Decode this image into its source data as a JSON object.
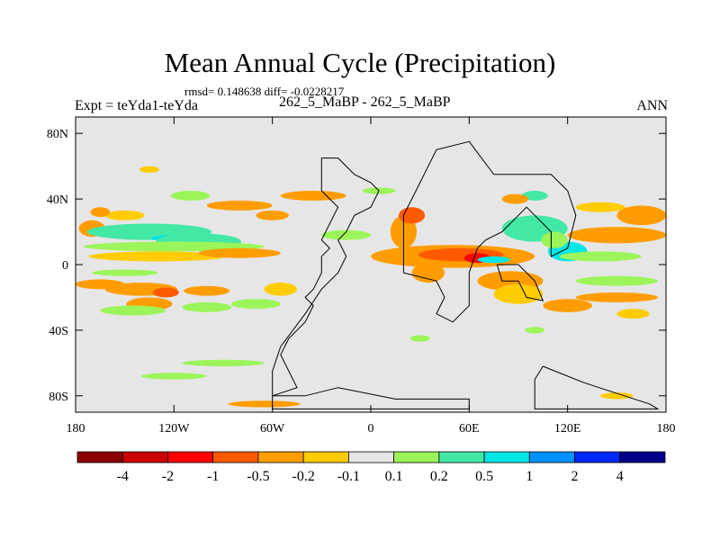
{
  "chart_data": {
    "type": "heatmap",
    "title": "Mean Annual Cycle (Precipitation)",
    "stats_line": "rmsd= 0.148638 diff= -0.0228217",
    "left_label": "Expt = teYda1-teYda",
    "center_label": "262_5_MaBP - 262_5_MaBP",
    "right_label": "ANN",
    "x_ticks": [
      "180",
      "120W",
      "60W",
      "0",
      "60E",
      "120E",
      "180"
    ],
    "y_ticks": [
      "80N",
      "40N",
      "0",
      "40S",
      "80S"
    ],
    "x_range": [
      -180,
      180
    ],
    "y_range": [
      -90,
      90
    ],
    "colorbar": {
      "labels": [
        "-4",
        "-2",
        "-1",
        "-0.5",
        "-0.2",
        "-0.1",
        "0.1",
        "0.2",
        "0.5",
        "1",
        "2",
        "4"
      ],
      "colors": [
        "#8b0000",
        "#cc0000",
        "#ff0000",
        "#ff5a00",
        "#ff9d00",
        "#ffcc00",
        "#e6e6e6",
        "#9bf55a",
        "#44e8a5",
        "#00e5e5",
        "#0090ff",
        "#0028ff",
        "#00008b"
      ]
    },
    "background_color": "#e6e6e6",
    "blobs": [
      {
        "lon": -170,
        "lat": 22,
        "rlon": 8,
        "rlat": 5,
        "c": 4
      },
      {
        "lon": -150,
        "lat": 30,
        "rlon": 12,
        "rlat": 3,
        "c": 5
      },
      {
        "lon": -165,
        "lat": 32,
        "rlon": 6,
        "rlat": 3,
        "c": 4
      },
      {
        "lon": -135,
        "lat": 20,
        "rlon": 38,
        "rlat": 5,
        "c": 8
      },
      {
        "lon": -120,
        "lat": 16,
        "rlon": 14,
        "rlat": 2,
        "c": 9
      },
      {
        "lon": -105,
        "lat": 14,
        "rlon": 26,
        "rlat": 5,
        "c": 8
      },
      {
        "lon": -120,
        "lat": 11,
        "rlon": 55,
        "rlat": 3,
        "c": 7
      },
      {
        "lon": -130,
        "lat": 5,
        "rlon": 42,
        "rlat": 3,
        "c": 5
      },
      {
        "lon": -80,
        "lat": 7,
        "rlon": 25,
        "rlat": 3,
        "c": 4
      },
      {
        "lon": -110,
        "lat": 42,
        "rlon": 12,
        "rlat": 3,
        "c": 7
      },
      {
        "lon": -80,
        "lat": 36,
        "rlon": 20,
        "rlat": 3,
        "c": 4
      },
      {
        "lon": -60,
        "lat": 30,
        "rlon": 10,
        "rlat": 3,
        "c": 4
      },
      {
        "lon": -135,
        "lat": 58,
        "rlon": 6,
        "rlat": 2,
        "c": 5
      },
      {
        "lon": -165,
        "lat": -12,
        "rlon": 15,
        "rlat": 3,
        "c": 4
      },
      {
        "lon": -140,
        "lat": -15,
        "rlon": 22,
        "rlat": 4,
        "c": 4
      },
      {
        "lon": -100,
        "lat": -16,
        "rlon": 14,
        "rlat": 3,
        "c": 4
      },
      {
        "lon": -135,
        "lat": -24,
        "rlon": 14,
        "rlat": 4,
        "c": 4
      },
      {
        "lon": -125,
        "lat": -17,
        "rlon": 8,
        "rlat": 3,
        "c": 3
      },
      {
        "lon": -145,
        "lat": -28,
        "rlon": 20,
        "rlat": 3,
        "c": 7
      },
      {
        "lon": -100,
        "lat": -26,
        "rlon": 15,
        "rlat": 3,
        "c": 7
      },
      {
        "lon": -70,
        "lat": -24,
        "rlon": 15,
        "rlat": 3,
        "c": 7
      },
      {
        "lon": -55,
        "lat": -15,
        "rlon": 10,
        "rlat": 4,
        "c": 5
      },
      {
        "lon": -150,
        "lat": -5,
        "rlon": 20,
        "rlat": 2,
        "c": 7
      },
      {
        "lon": -35,
        "lat": 42,
        "rlon": 20,
        "rlat": 3,
        "c": 4
      },
      {
        "lon": -15,
        "lat": 18,
        "rlon": 15,
        "rlat": 3,
        "c": 7
      },
      {
        "lon": 20,
        "lat": 20,
        "rlon": 8,
        "rlat": 10,
        "c": 4
      },
      {
        "lon": 25,
        "lat": 30,
        "rlon": 8,
        "rlat": 5,
        "c": 3
      },
      {
        "lon": 50,
        "lat": 5,
        "rlon": 50,
        "rlat": 7,
        "c": 4
      },
      {
        "lon": 55,
        "lat": 6,
        "rlon": 26,
        "rlat": 4,
        "c": 3
      },
      {
        "lon": 65,
        "lat": 4,
        "rlon": 8,
        "rlat": 3,
        "c": 2
      },
      {
        "lon": 75,
        "lat": 3,
        "rlon": 10,
        "rlat": 2,
        "c": 9
      },
      {
        "lon": 35,
        "lat": -5,
        "rlon": 10,
        "rlat": 6,
        "c": 4
      },
      {
        "lon": 85,
        "lat": -10,
        "rlon": 20,
        "rlat": 6,
        "c": 4
      },
      {
        "lon": 90,
        "lat": -18,
        "rlon": 15,
        "rlat": 6,
        "c": 5
      },
      {
        "lon": 100,
        "lat": 22,
        "rlon": 20,
        "rlat": 8,
        "c": 8
      },
      {
        "lon": 120,
        "lat": 8,
        "rlon": 12,
        "rlat": 6,
        "c": 9
      },
      {
        "lon": 112,
        "lat": 15,
        "rlon": 8,
        "rlat": 5,
        "c": 7
      },
      {
        "lon": 150,
        "lat": 18,
        "rlon": 30,
        "rlat": 5,
        "c": 4
      },
      {
        "lon": 165,
        "lat": 30,
        "rlon": 15,
        "rlat": 6,
        "c": 4
      },
      {
        "lon": 140,
        "lat": 35,
        "rlon": 15,
        "rlat": 3,
        "c": 5
      },
      {
        "lon": 140,
        "lat": 5,
        "rlon": 25,
        "rlat": 3,
        "c": 7
      },
      {
        "lon": 150,
        "lat": -10,
        "rlon": 25,
        "rlat": 3,
        "c": 7
      },
      {
        "lon": 150,
        "lat": -20,
        "rlon": 25,
        "rlat": 3,
        "c": 4
      },
      {
        "lon": 120,
        "lat": -25,
        "rlon": 15,
        "rlat": 4,
        "c": 4
      },
      {
        "lon": 160,
        "lat": -30,
        "rlon": 10,
        "rlat": 3,
        "c": 5
      },
      {
        "lon": 100,
        "lat": -40,
        "rlon": 6,
        "rlat": 2,
        "c": 7
      },
      {
        "lon": 30,
        "lat": -45,
        "rlon": 6,
        "rlat": 2,
        "c": 7
      },
      {
        "lon": -90,
        "lat": -60,
        "rlon": 25,
        "rlat": 2,
        "c": 7
      },
      {
        "lon": -120,
        "lat": -68,
        "rlon": 20,
        "rlat": 2,
        "c": 7
      },
      {
        "lon": -65,
        "lat": -85,
        "rlon": 22,
        "rlat": 2,
        "c": 4
      },
      {
        "lon": 150,
        "lat": -80,
        "rlon": 10,
        "rlat": 2,
        "c": 5
      },
      {
        "lon": 5,
        "lat": 45,
        "rlon": 10,
        "rlat": 2,
        "c": 7
      },
      {
        "lon": 100,
        "lat": 42,
        "rlon": 8,
        "rlat": 3,
        "c": 8
      },
      {
        "lon": 88,
        "lat": 40,
        "rlon": 8,
        "rlat": 3,
        "c": 4
      }
    ],
    "continents": [
      [
        [
          -30,
          65
        ],
        [
          -30,
          45
        ],
        [
          -25,
          40
        ],
        [
          -20,
          35
        ],
        [
          -25,
          25
        ],
        [
          -30,
          15
        ],
        [
          -25,
          10
        ],
        [
          -30,
          5
        ],
        [
          -30,
          -5
        ],
        [
          -35,
          -15
        ],
        [
          -40,
          -20
        ],
        [
          -35,
          -25
        ],
        [
          -40,
          -35
        ],
        [
          -50,
          -45
        ],
        [
          -55,
          -55
        ],
        [
          -50,
          -65
        ],
        [
          -45,
          -75
        ],
        [
          -60,
          -80
        ],
        [
          -60,
          -65
        ],
        [
          -55,
          -50
        ],
        [
          -40,
          -30
        ],
        [
          -30,
          -15
        ],
        [
          -20,
          -5
        ],
        [
          -15,
          5
        ],
        [
          -20,
          15
        ],
        [
          -15,
          20
        ],
        [
          -10,
          30
        ],
        [
          0,
          35
        ],
        [
          5,
          45
        ],
        [
          0,
          50
        ],
        [
          -10,
          55
        ],
        [
          -20,
          65
        ],
        [
          -30,
          65
        ]
      ],
      [
        [
          20,
          20
        ],
        [
          20,
          -5
        ],
        [
          40,
          -10
        ],
        [
          45,
          -20
        ],
        [
          40,
          -30
        ],
        [
          50,
          -35
        ],
        [
          60,
          -25
        ],
        [
          60,
          -5
        ],
        [
          65,
          10
        ],
        [
          70,
          15
        ],
        [
          80,
          20
        ],
        [
          95,
          35
        ],
        [
          110,
          20
        ],
        [
          110,
          5
        ],
        [
          120,
          10
        ],
        [
          125,
          30
        ],
        [
          120,
          45
        ],
        [
          110,
          55
        ],
        [
          75,
          55
        ],
        [
          60,
          75
        ],
        [
          40,
          70
        ],
        [
          35,
          60
        ],
        [
          30,
          50
        ],
        [
          25,
          40
        ],
        [
          20,
          30
        ],
        [
          20,
          20
        ]
      ],
      [
        [
          77,
          0
        ],
        [
          80,
          -10
        ],
        [
          90,
          -10
        ],
        [
          95,
          -20
        ],
        [
          105,
          -22
        ],
        [
          100,
          -10
        ],
        [
          90,
          0
        ],
        [
          77,
          0
        ]
      ],
      [
        [
          -40,
          -80
        ],
        [
          -20,
          -75
        ],
        [
          15,
          -82
        ],
        [
          60,
          -82
        ],
        [
          60,
          -88
        ],
        [
          -60,
          -88
        ],
        [
          -60,
          -80
        ],
        [
          -40,
          -80
        ]
      ],
      [
        [
          105,
          -62
        ],
        [
          130,
          -72
        ],
        [
          170,
          -85
        ],
        [
          175,
          -88
        ],
        [
          100,
          -88
        ],
        [
          100,
          -70
        ],
        [
          105,
          -62
        ]
      ]
    ]
  }
}
